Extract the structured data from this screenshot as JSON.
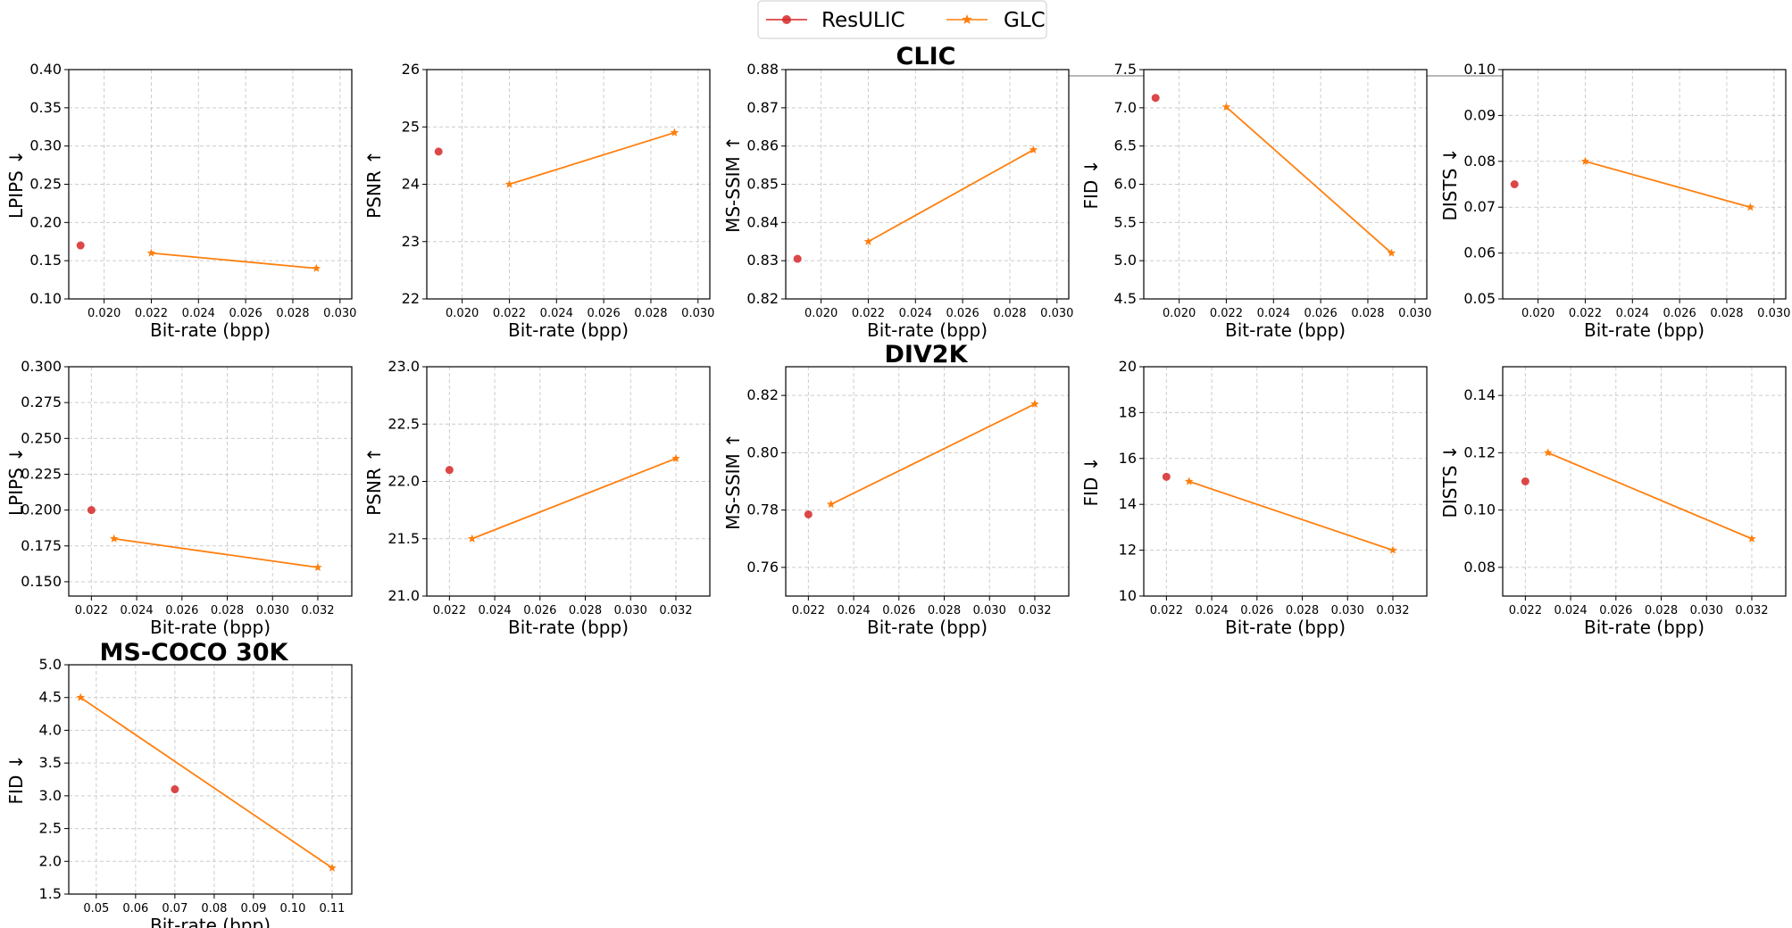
{
  "legend": [
    {
      "name": "ResULIC",
      "color": "#d62728",
      "marker": "circle"
    },
    {
      "name": "GLC",
      "color": "#ff7f0e",
      "marker": "star"
    }
  ],
  "sections": [
    "CLIC",
    "DIV2K",
    "MS-COCO 30K"
  ],
  "chart_data": [
    {
      "type": "scatter",
      "section": "CLIC",
      "xlabel": "Bit-rate (bpp)",
      "ylabel": "LPIPS ↓",
      "xlim": [
        0.0185,
        0.0305
      ],
      "ylim": [
        0.1,
        0.4
      ],
      "xticks": [
        "0.020",
        "0.022",
        "0.024",
        "0.026",
        "0.028",
        "0.030"
      ],
      "xtick_values": [
        0.02,
        0.022,
        0.024,
        0.026,
        0.028,
        0.03
      ],
      "yticks": [
        "0.10",
        "0.15",
        "0.20",
        "0.25",
        "0.30",
        "0.35",
        "0.40"
      ],
      "ytick_values": [
        0.1,
        0.15,
        0.2,
        0.25,
        0.3,
        0.35,
        0.4
      ],
      "series": [
        {
          "name": "ResULIC",
          "points": [
            [
              0.019,
              0.17
            ]
          ]
        },
        {
          "name": "GLC",
          "points": [
            [
              0.022,
              0.16
            ],
            [
              0.029,
              0.14
            ]
          ]
        }
      ]
    },
    {
      "type": "scatter",
      "section": "CLIC",
      "xlabel": "Bit-rate (bpp)",
      "ylabel": "PSNR ↑",
      "xlim": [
        0.0185,
        0.0305
      ],
      "ylim": [
        22,
        26
      ],
      "xticks": [
        "0.020",
        "0.022",
        "0.024",
        "0.026",
        "0.028",
        "0.030"
      ],
      "xtick_values": [
        0.02,
        0.022,
        0.024,
        0.026,
        0.028,
        0.03
      ],
      "yticks": [
        "22",
        "23",
        "24",
        "25",
        "26"
      ],
      "ytick_values": [
        22,
        23,
        24,
        25,
        26
      ],
      "series": [
        {
          "name": "ResULIC",
          "points": [
            [
              0.019,
              24.57
            ]
          ]
        },
        {
          "name": "GLC",
          "points": [
            [
              0.022,
              24.0
            ],
            [
              0.029,
              24.9
            ]
          ]
        }
      ]
    },
    {
      "type": "scatter",
      "section": "CLIC",
      "xlabel": "Bit-rate (bpp)",
      "ylabel": "MS-SSIM ↑",
      "xlim": [
        0.0185,
        0.0305
      ],
      "ylim": [
        0.82,
        0.88
      ],
      "xticks": [
        "0.020",
        "0.022",
        "0.024",
        "0.026",
        "0.028",
        "0.030"
      ],
      "xtick_values": [
        0.02,
        0.022,
        0.024,
        0.026,
        0.028,
        0.03
      ],
      "yticks": [
        "0.82",
        "0.83",
        "0.84",
        "0.85",
        "0.86",
        "0.87",
        "0.88"
      ],
      "ytick_values": [
        0.82,
        0.83,
        0.84,
        0.85,
        0.86,
        0.87,
        0.88
      ],
      "series": [
        {
          "name": "ResULIC",
          "points": [
            [
              0.019,
              0.8305
            ]
          ]
        },
        {
          "name": "GLC",
          "points": [
            [
              0.022,
              0.835
            ],
            [
              0.029,
              0.859
            ]
          ]
        }
      ]
    },
    {
      "type": "scatter",
      "section": "CLIC",
      "xlabel": "Bit-rate (bpp)",
      "ylabel": "FID ↓",
      "xlim": [
        0.0185,
        0.0305
      ],
      "ylim": [
        4.5,
        7.5
      ],
      "xticks": [
        "0.020",
        "0.022",
        "0.024",
        "0.026",
        "0.028",
        "0.030"
      ],
      "xtick_values": [
        0.02,
        0.022,
        0.024,
        0.026,
        0.028,
        0.03
      ],
      "yticks": [
        "4.5",
        "5.0",
        "5.5",
        "6.0",
        "6.5",
        "7.0",
        "7.5"
      ],
      "ytick_values": [
        4.5,
        5.0,
        5.5,
        6.0,
        6.5,
        7.0,
        7.5
      ],
      "series": [
        {
          "name": "ResULIC",
          "points": [
            [
              0.019,
              7.13
            ]
          ]
        },
        {
          "name": "GLC",
          "points": [
            [
              0.022,
              7.01
            ],
            [
              0.029,
              5.1
            ]
          ]
        }
      ]
    },
    {
      "type": "scatter",
      "section": "CLIC",
      "xlabel": "Bit-rate (bpp)",
      "ylabel": "DISTS ↓",
      "xlim": [
        0.0185,
        0.0305
      ],
      "ylim": [
        0.05,
        0.1
      ],
      "xticks": [
        "0.020",
        "0.022",
        "0.024",
        "0.026",
        "0.028",
        "0.030"
      ],
      "xtick_values": [
        0.02,
        0.022,
        0.024,
        0.026,
        0.028,
        0.03
      ],
      "yticks": [
        "0.05",
        "0.06",
        "0.07",
        "0.08",
        "0.09",
        "0.10"
      ],
      "ytick_values": [
        0.05,
        0.06,
        0.07,
        0.08,
        0.09,
        0.1
      ],
      "series": [
        {
          "name": "ResULIC",
          "points": [
            [
              0.019,
              0.075
            ]
          ]
        },
        {
          "name": "GLC",
          "points": [
            [
              0.022,
              0.08
            ],
            [
              0.029,
              0.07
            ]
          ]
        }
      ]
    },
    {
      "type": "scatter",
      "section": "DIV2K",
      "xlabel": "Bit-rate (bpp)",
      "ylabel": "LPIPS ↓",
      "xlim": [
        0.021,
        0.0335
      ],
      "ylim": [
        0.14,
        0.3
      ],
      "xticks": [
        "0.022",
        "0.024",
        "0.026",
        "0.028",
        "0.030",
        "0.032"
      ],
      "xtick_values": [
        0.022,
        0.024,
        0.026,
        0.028,
        0.03,
        0.032
      ],
      "yticks": [
        "0.150",
        "0.175",
        "0.200",
        "0.225",
        "0.250",
        "0.275",
        "0.300"
      ],
      "ytick_values": [
        0.15,
        0.175,
        0.2,
        0.225,
        0.25,
        0.275,
        0.3
      ],
      "series": [
        {
          "name": "ResULIC",
          "points": [
            [
              0.022,
              0.2
            ]
          ]
        },
        {
          "name": "GLC",
          "points": [
            [
              0.023,
              0.18
            ],
            [
              0.032,
              0.16
            ]
          ]
        }
      ]
    },
    {
      "type": "scatter",
      "section": "DIV2K",
      "xlabel": "Bit-rate (bpp)",
      "ylabel": "PSNR ↑",
      "xlim": [
        0.021,
        0.0335
      ],
      "ylim": [
        21.0,
        23.0
      ],
      "xticks": [
        "0.022",
        "0.024",
        "0.026",
        "0.028",
        "0.030",
        "0.032"
      ],
      "xtick_values": [
        0.022,
        0.024,
        0.026,
        0.028,
        0.03,
        0.032
      ],
      "yticks": [
        "21.0",
        "21.5",
        "22.0",
        "22.5",
        "23.0"
      ],
      "ytick_values": [
        21.0,
        21.5,
        22.0,
        22.5,
        23.0
      ],
      "series": [
        {
          "name": "ResULIC",
          "points": [
            [
              0.022,
              22.1
            ]
          ]
        },
        {
          "name": "GLC",
          "points": [
            [
              0.023,
              21.5
            ],
            [
              0.032,
              22.2
            ]
          ]
        }
      ]
    },
    {
      "type": "scatter",
      "section": "DIV2K",
      "xlabel": "Bit-rate (bpp)",
      "ylabel": "MS-SSIM ↑",
      "xlim": [
        0.021,
        0.0335
      ],
      "ylim": [
        0.75,
        0.83
      ],
      "xticks": [
        "0.022",
        "0.024",
        "0.026",
        "0.028",
        "0.030",
        "0.032"
      ],
      "xtick_values": [
        0.022,
        0.024,
        0.026,
        0.028,
        0.03,
        0.032
      ],
      "yticks": [
        "0.76",
        "0.78",
        "0.80",
        "0.82"
      ],
      "ytick_values": [
        0.76,
        0.78,
        0.8,
        0.82
      ],
      "series": [
        {
          "name": "ResULIC",
          "points": [
            [
              0.022,
              0.7785
            ]
          ]
        },
        {
          "name": "GLC",
          "points": [
            [
              0.023,
              0.782
            ],
            [
              0.032,
              0.817
            ]
          ]
        }
      ]
    },
    {
      "type": "scatter",
      "section": "DIV2K",
      "xlabel": "Bit-rate (bpp)",
      "ylabel": "FID ↓",
      "xlim": [
        0.021,
        0.0335
      ],
      "ylim": [
        10,
        20
      ],
      "xticks": [
        "0.022",
        "0.024",
        "0.026",
        "0.028",
        "0.030",
        "0.032"
      ],
      "xtick_values": [
        0.022,
        0.024,
        0.026,
        0.028,
        0.03,
        0.032
      ],
      "yticks": [
        "10",
        "12",
        "14",
        "16",
        "18",
        "20"
      ],
      "ytick_values": [
        10,
        12,
        14,
        16,
        18,
        20
      ],
      "series": [
        {
          "name": "ResULIC",
          "points": [
            [
              0.022,
              15.2
            ]
          ]
        },
        {
          "name": "GLC",
          "points": [
            [
              0.023,
              15.0
            ],
            [
              0.032,
              12.0
            ]
          ]
        }
      ]
    },
    {
      "type": "scatter",
      "section": "DIV2K",
      "xlabel": "Bit-rate (bpp)",
      "ylabel": "DISTS ↓",
      "xlim": [
        0.021,
        0.0335
      ],
      "ylim": [
        0.07,
        0.15
      ],
      "xticks": [
        "0.022",
        "0.024",
        "0.026",
        "0.028",
        "0.030",
        "0.032"
      ],
      "xtick_values": [
        0.022,
        0.024,
        0.026,
        0.028,
        0.03,
        0.032
      ],
      "yticks": [
        "0.08",
        "0.10",
        "0.12",
        "0.14"
      ],
      "ytick_values": [
        0.08,
        0.1,
        0.12,
        0.14
      ],
      "series": [
        {
          "name": "ResULIC",
          "points": [
            [
              0.022,
              0.11
            ]
          ]
        },
        {
          "name": "GLC",
          "points": [
            [
              0.023,
              0.12
            ],
            [
              0.032,
              0.09
            ]
          ]
        }
      ]
    },
    {
      "type": "scatter",
      "section": "MS-COCO 30K",
      "xlabel": "Bit-rate (bpp)",
      "ylabel": "FID ↓",
      "xlim": [
        0.043,
        0.115
      ],
      "ylim": [
        1.5,
        5.0
      ],
      "xticks": [
        "0.05",
        "0.06",
        "0.07",
        "0.08",
        "0.09",
        "0.10",
        "0.11"
      ],
      "xtick_values": [
        0.05,
        0.06,
        0.07,
        0.08,
        0.09,
        0.1,
        0.11
      ],
      "yticks": [
        "1.5",
        "2.0",
        "2.5",
        "3.0",
        "3.5",
        "4.0",
        "4.5",
        "5.0"
      ],
      "ytick_values": [
        1.5,
        2.0,
        2.5,
        3.0,
        3.5,
        4.0,
        4.5,
        5.0
      ],
      "series": [
        {
          "name": "ResULIC",
          "points": [
            [
              0.07,
              3.1
            ]
          ]
        },
        {
          "name": "GLC",
          "points": [
            [
              0.046,
              4.5
            ],
            [
              0.11,
              1.9
            ]
          ]
        }
      ]
    }
  ]
}
